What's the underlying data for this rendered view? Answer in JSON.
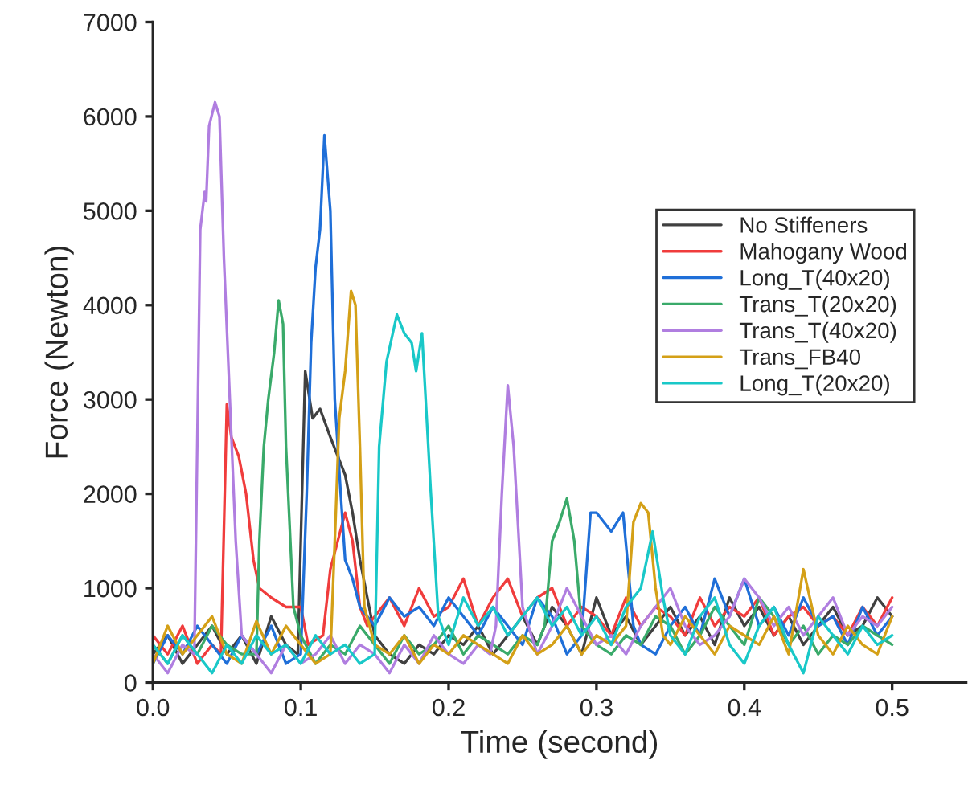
{
  "chart_data": {
    "type": "line",
    "xlabel": "Time (second)",
    "ylabel": "Force (Newton)",
    "xlim": [
      0,
      0.55
    ],
    "ylim": [
      0,
      7000
    ],
    "xticks": [
      {
        "value": 0,
        "label": "0.0"
      },
      {
        "value": 0.1,
        "label": "0.1"
      },
      {
        "value": 0.2,
        "label": "0.2"
      },
      {
        "value": 0.3,
        "label": "0.3"
      },
      {
        "value": 0.4,
        "label": "0.4"
      },
      {
        "value": 0.5,
        "label": "0.5"
      }
    ],
    "yticks": [
      0,
      1000,
      2000,
      3000,
      4000,
      5000,
      6000,
      7000
    ],
    "grid": false,
    "legend": "right",
    "marker": "none",
    "line_style": "solid",
    "series": [
      {
        "name": "No Stiffeners",
        "color": "#404040",
        "x": [
          0,
          0.01,
          0.02,
          0.03,
          0.04,
          0.05,
          0.06,
          0.07,
          0.08,
          0.09,
          0.098,
          0.103,
          0.108,
          0.113,
          0.12,
          0.125,
          0.13,
          0.135,
          0.14,
          0.145,
          0.15,
          0.16,
          0.17,
          0.18,
          0.19,
          0.2,
          0.21,
          0.22,
          0.23,
          0.24,
          0.25,
          0.26,
          0.27,
          0.28,
          0.29,
          0.3,
          0.31,
          0.32,
          0.33,
          0.34,
          0.35,
          0.36,
          0.37,
          0.38,
          0.39,
          0.4,
          0.41,
          0.42,
          0.43,
          0.44,
          0.45,
          0.46,
          0.47,
          0.48,
          0.49,
          0.5
        ],
        "values": [
          300,
          500,
          200,
          400,
          600,
          300,
          500,
          200,
          700,
          400,
          300,
          3300,
          2800,
          2900,
          2600,
          2400,
          2200,
          1800,
          1300,
          900,
          500,
          300,
          200,
          400,
          300,
          500,
          400,
          600,
          300,
          500,
          700,
          400,
          800,
          600,
          300,
          900,
          500,
          700,
          400,
          600,
          800,
          500,
          700,
          400,
          900,
          600,
          800,
          500,
          700,
          400,
          600,
          800,
          500,
          600,
          900,
          700
        ]
      },
      {
        "name": "Mahogany Wood",
        "color": "#f03c3c",
        "x": [
          0,
          0.01,
          0.02,
          0.03,
          0.04,
          0.046,
          0.05,
          0.053,
          0.058,
          0.063,
          0.068,
          0.072,
          0.08,
          0.09,
          0.1,
          0.105,
          0.115,
          0.12,
          0.125,
          0.13,
          0.135,
          0.14,
          0.145,
          0.15,
          0.16,
          0.17,
          0.18,
          0.19,
          0.2,
          0.21,
          0.22,
          0.23,
          0.24,
          0.25,
          0.26,
          0.27,
          0.28,
          0.29,
          0.3,
          0.31,
          0.32,
          0.33,
          0.34,
          0.35,
          0.36,
          0.37,
          0.38,
          0.39,
          0.4,
          0.41,
          0.42,
          0.43,
          0.44,
          0.45,
          0.46,
          0.47,
          0.48,
          0.49,
          0.5
        ],
        "values": [
          500,
          300,
          600,
          200,
          400,
          300,
          2950,
          2600,
          2400,
          2000,
          1300,
          1000,
          900,
          800,
          800,
          400,
          500,
          1200,
          1500,
          1800,
          1500,
          800,
          600,
          700,
          900,
          600,
          1000,
          700,
          800,
          1100,
          600,
          900,
          1100,
          700,
          900,
          1000,
          600,
          800,
          700,
          500,
          900,
          600,
          800,
          700,
          500,
          900,
          600,
          800,
          700,
          900,
          500,
          700,
          800,
          600,
          700,
          500,
          800,
          600,
          900
        ]
      },
      {
        "name": "Long_T(40x20)",
        "color": "#1f6fd8",
        "x": [
          0,
          0.01,
          0.02,
          0.03,
          0.04,
          0.05,
          0.06,
          0.07,
          0.08,
          0.09,
          0.1,
          0.104,
          0.107,
          0.11,
          0.113,
          0.116,
          0.12,
          0.123,
          0.127,
          0.13,
          0.135,
          0.14,
          0.15,
          0.16,
          0.17,
          0.18,
          0.19,
          0.2,
          0.21,
          0.22,
          0.23,
          0.24,
          0.25,
          0.26,
          0.27,
          0.28,
          0.29,
          0.296,
          0.3,
          0.31,
          0.318,
          0.325,
          0.33,
          0.34,
          0.35,
          0.36,
          0.37,
          0.38,
          0.39,
          0.4,
          0.41,
          0.42,
          0.43,
          0.44,
          0.45,
          0.46,
          0.47,
          0.48,
          0.49,
          0.5
        ],
        "values": [
          200,
          500,
          300,
          600,
          400,
          200,
          500,
          300,
          600,
          200,
          300,
          2000,
          3600,
          4400,
          4800,
          5800,
          5000,
          3000,
          2000,
          1300,
          1100,
          800,
          600,
          900,
          700,
          800,
          600,
          900,
          700,
          500,
          800,
          600,
          400,
          900,
          700,
          300,
          500,
          1800,
          1800,
          1600,
          1800,
          600,
          400,
          300,
          600,
          800,
          500,
          1100,
          700,
          1100,
          600,
          800,
          500,
          900,
          600,
          700,
          400,
          800,
          500,
          700
        ]
      },
      {
        "name": "Trans_T(20x20)",
        "color": "#3aaa6a",
        "x": [
          0,
          0.01,
          0.02,
          0.03,
          0.04,
          0.05,
          0.06,
          0.07,
          0.072,
          0.075,
          0.078,
          0.082,
          0.085,
          0.088,
          0.09,
          0.095,
          0.1,
          0.11,
          0.12,
          0.13,
          0.14,
          0.15,
          0.16,
          0.17,
          0.18,
          0.19,
          0.2,
          0.21,
          0.22,
          0.23,
          0.24,
          0.25,
          0.26,
          0.265,
          0.27,
          0.275,
          0.28,
          0.285,
          0.29,
          0.3,
          0.31,
          0.32,
          0.33,
          0.34,
          0.35,
          0.36,
          0.37,
          0.38,
          0.39,
          0.4,
          0.41,
          0.42,
          0.43,
          0.44,
          0.45,
          0.46,
          0.47,
          0.48,
          0.49,
          0.5
        ],
        "values": [
          400,
          200,
          500,
          300,
          600,
          400,
          300,
          300,
          1500,
          2500,
          3000,
          3500,
          4050,
          3800,
          2500,
          800,
          500,
          200,
          400,
          300,
          600,
          400,
          200,
          500,
          300,
          400,
          600,
          300,
          500,
          400,
          300,
          500,
          400,
          600,
          1500,
          1700,
          1950,
          1500,
          600,
          400,
          300,
          500,
          400,
          700,
          600,
          300,
          500,
          800,
          600,
          400,
          900,
          700,
          400,
          600,
          300,
          500,
          400,
          600,
          500,
          400
        ]
      },
      {
        "name": "Trans_T(40x20)",
        "color": "#b07ee0",
        "x": [
          0,
          0.01,
          0.02,
          0.028,
          0.032,
          0.035,
          0.036,
          0.038,
          0.042,
          0.045,
          0.048,
          0.052,
          0.056,
          0.06,
          0.07,
          0.08,
          0.09,
          0.1,
          0.11,
          0.12,
          0.13,
          0.14,
          0.15,
          0.16,
          0.17,
          0.18,
          0.19,
          0.2,
          0.21,
          0.22,
          0.228,
          0.232,
          0.236,
          0.24,
          0.244,
          0.25,
          0.26,
          0.27,
          0.28,
          0.29,
          0.3,
          0.31,
          0.32,
          0.33,
          0.34,
          0.35,
          0.36,
          0.37,
          0.38,
          0.39,
          0.4,
          0.41,
          0.42,
          0.43,
          0.44,
          0.45,
          0.46,
          0.47,
          0.48,
          0.49,
          0.5
        ],
        "values": [
          300,
          100,
          400,
          300,
          4800,
          5200,
          5100,
          5900,
          6150,
          6000,
          4500,
          3000,
          1500,
          500,
          300,
          100,
          400,
          200,
          300,
          500,
          200,
          400,
          300,
          100,
          400,
          200,
          500,
          300,
          200,
          400,
          300,
          600,
          2000,
          3150,
          2500,
          800,
          300,
          600,
          1000,
          700,
          400,
          500,
          300,
          600,
          800,
          1000,
          600,
          400,
          500,
          700,
          1100,
          900,
          600,
          800,
          500,
          700,
          900,
          500,
          700,
          600,
          800
        ]
      },
      {
        "name": "Trans_FB40",
        "color": "#d4a017",
        "x": [
          0,
          0.01,
          0.02,
          0.03,
          0.04,
          0.05,
          0.06,
          0.07,
          0.08,
          0.09,
          0.1,
          0.11,
          0.12,
          0.123,
          0.126,
          0.13,
          0.134,
          0.137,
          0.14,
          0.143,
          0.15,
          0.16,
          0.17,
          0.18,
          0.19,
          0.2,
          0.21,
          0.22,
          0.23,
          0.24,
          0.25,
          0.26,
          0.27,
          0.28,
          0.29,
          0.3,
          0.31,
          0.32,
          0.325,
          0.33,
          0.335,
          0.34,
          0.345,
          0.35,
          0.36,
          0.37,
          0.38,
          0.39,
          0.4,
          0.41,
          0.42,
          0.43,
          0.44,
          0.45,
          0.46,
          0.47,
          0.48,
          0.49,
          0.5
        ],
        "values": [
          200,
          600,
          300,
          500,
          700,
          300,
          200,
          650,
          300,
          600,
          400,
          200,
          300,
          1500,
          2800,
          3300,
          4150,
          4000,
          2500,
          800,
          400,
          300,
          500,
          200,
          400,
          300,
          500,
          400,
          300,
          200,
          500,
          300,
          400,
          600,
          300,
          500,
          400,
          600,
          1700,
          1900,
          1800,
          1000,
          500,
          400,
          700,
          500,
          300,
          600,
          500,
          400,
          700,
          300,
          1200,
          500,
          300,
          600,
          400,
          300,
          700
        ]
      },
      {
        "name": "Long_T(20x20)",
        "color": "#19c8c8",
        "x": [
          0,
          0.01,
          0.02,
          0.03,
          0.04,
          0.05,
          0.06,
          0.07,
          0.08,
          0.09,
          0.1,
          0.11,
          0.12,
          0.13,
          0.14,
          0.15,
          0.153,
          0.158,
          0.165,
          0.17,
          0.175,
          0.178,
          0.182,
          0.188,
          0.193,
          0.2,
          0.21,
          0.22,
          0.23,
          0.24,
          0.25,
          0.26,
          0.27,
          0.28,
          0.29,
          0.3,
          0.31,
          0.32,
          0.33,
          0.338,
          0.345,
          0.35,
          0.36,
          0.37,
          0.38,
          0.39,
          0.4,
          0.41,
          0.42,
          0.43,
          0.44,
          0.45,
          0.46,
          0.47,
          0.48,
          0.49,
          0.5
        ],
        "values": [
          400,
          200,
          500,
          300,
          100,
          400,
          200,
          500,
          300,
          400,
          200,
          500,
          300,
          400,
          200,
          300,
          2500,
          3400,
          3900,
          3700,
          3600,
          3300,
          3700,
          2000,
          700,
          400,
          900,
          600,
          800,
          500,
          700,
          900,
          600,
          800,
          500,
          700,
          400,
          800,
          1000,
          1600,
          900,
          500,
          300,
          700,
          900,
          400,
          200,
          600,
          800,
          400,
          100,
          700,
          500,
          300,
          600,
          400,
          500
        ]
      }
    ]
  }
}
